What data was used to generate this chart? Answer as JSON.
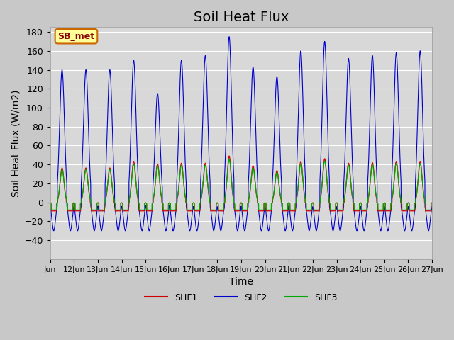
{
  "title": "Soil Heat Flux",
  "ylabel": "Soil Heat Flux (W/m2)",
  "xlabel": "Time",
  "xlim_days": [
    11,
    27
  ],
  "ylim": [
    -60,
    185
  ],
  "yticks": [
    -40,
    -20,
    0,
    20,
    40,
    60,
    80,
    100,
    120,
    140,
    160,
    180
  ],
  "xtick_labels": [
    "Jun 12",
    "Jun 13",
    "Jun 14",
    "Jun 15",
    "Jun 16",
    "Jun 17",
    "Jun 18",
    "Jun 19",
    "Jun 20",
    "Jun 21",
    "Jun 22",
    "Jun 23",
    "Jun 24",
    "Jun 25",
    "Jun 26",
    "Jun 27"
  ],
  "xtick_days": [
    12,
    13,
    14,
    15,
    16,
    17,
    18,
    19,
    20,
    21,
    22,
    23,
    24,
    25,
    26,
    27
  ],
  "series_colors": {
    "SHF1": "#cc0000",
    "SHF2": "#0000cc",
    "SHF3": "#00aa00"
  },
  "legend_label": "SB_met",
  "legend_box_color": "#ffff99",
  "legend_box_border": "#cc6600",
  "background_color": "#e8e8e8",
  "plot_bg_color": "#d8d8d8",
  "grid_color": "#ffffff",
  "title_fontsize": 14,
  "axis_label_fontsize": 10,
  "tick_fontsize": 9,
  "num_points": 3600,
  "days_start": 11,
  "days_end": 27
}
